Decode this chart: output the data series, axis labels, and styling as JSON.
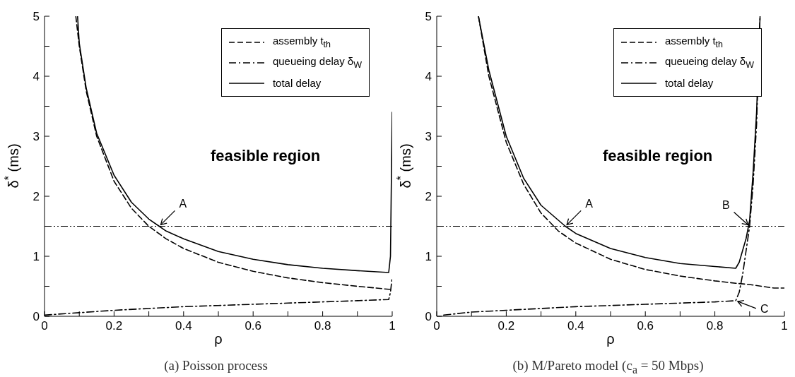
{
  "chart_data": [
    {
      "type": "line",
      "title": "(a) Poisson process",
      "xlabel": "ρ",
      "ylabel": "δ$^{*}$ (ms)",
      "xlim": [
        0,
        1
      ],
      "ylim": [
        0,
        5
      ],
      "xticks": [
        0,
        {
          "value": 0.1,
          "label": null
        },
        0.2,
        {
          "value": 0.3,
          "label": null
        },
        0.4,
        {
          "value": 0.5,
          "label": null
        },
        0.6,
        {
          "value": 0.7,
          "label": null
        },
        0.8,
        {
          "value": 0.9,
          "label": null
        },
        1
      ],
      "yticks": [
        0,
        {
          "value": 0.5,
          "label": null
        },
        1,
        {
          "value": 1.5,
          "label": null
        },
        2,
        {
          "value": 2.5,
          "label": null
        },
        3,
        {
          "value": 3.5,
          "label": null
        },
        4,
        {
          "value": 4.5,
          "label": null
        },
        5
      ],
      "legend": "top right",
      "marker": "none",
      "series": [
        {
          "name": "assembly t$_{th}$",
          "color": "#000000",
          "line_style": "dashed",
          "x": [
            0.09,
            0.1,
            0.12,
            0.15,
            0.2,
            0.25,
            0.3,
            0.35,
            0.4,
            0.5,
            0.6,
            0.7,
            0.8,
            0.9,
            0.99,
            1.0
          ],
          "values": [
            5.0,
            4.5,
            3.75,
            3.0,
            2.25,
            1.8,
            1.5,
            1.29,
            1.13,
            0.9,
            0.75,
            0.64,
            0.56,
            0.5,
            0.45,
            0.45
          ]
        },
        {
          "name": "queueing delay δ$_{W}$",
          "color": "#000000",
          "line_style": "dashdot",
          "x": [
            0.0,
            0.1,
            0.2,
            0.3,
            0.4,
            0.5,
            0.6,
            0.7,
            0.8,
            0.9,
            0.99,
            0.995,
            1.0
          ],
          "values": [
            0.02,
            0.06,
            0.1,
            0.13,
            0.16,
            0.18,
            0.2,
            0.22,
            0.24,
            0.26,
            0.28,
            0.4,
            0.65
          ]
        },
        {
          "name": "total delay",
          "color": "#000000",
          "line_style": "solid",
          "x": [
            0.095,
            0.1,
            0.12,
            0.15,
            0.2,
            0.25,
            0.3,
            0.33,
            0.35,
            0.4,
            0.5,
            0.6,
            0.7,
            0.8,
            0.9,
            0.99,
            0.995,
            1.0
          ],
          "values": [
            5.0,
            4.55,
            3.8,
            3.05,
            2.35,
            1.9,
            1.62,
            1.5,
            1.42,
            1.29,
            1.08,
            0.95,
            0.86,
            0.8,
            0.76,
            0.73,
            1.0,
            3.4
          ]
        }
      ],
      "ref_lines": [
        {
          "axis": "y",
          "value": 1.5,
          "color": "#000000",
          "line_style": "dashdotdot"
        }
      ],
      "annotations": [
        "feasible region",
        {
          "text": "A",
          "x": 0.33,
          "y": 1.5
        }
      ]
    },
    {
      "type": "line",
      "title": "(b) M/Pareto model (c$_{a}$ = 50 Mbps)",
      "xlabel": "ρ",
      "ylabel": "δ$^{*}$ (ms)",
      "xlim": [
        0,
        1
      ],
      "ylim": [
        0,
        5
      ],
      "xticks": [
        0,
        {
          "value": 0.1,
          "label": null
        },
        0.2,
        {
          "value": 0.3,
          "label": null
        },
        0.4,
        {
          "value": 0.5,
          "label": null
        },
        0.6,
        {
          "value": 0.7,
          "label": null
        },
        0.8,
        {
          "value": 0.9,
          "label": null
        },
        1
      ],
      "yticks": [
        0,
        {
          "value": 0.5,
          "label": null
        },
        1,
        {
          "value": 1.5,
          "label": null
        },
        2,
        {
          "value": 2.5,
          "label": null
        },
        3,
        {
          "value": 3.5,
          "label": null
        },
        4,
        {
          "value": 4.5,
          "label": null
        },
        5
      ],
      "legend": "top right",
      "marker": "none",
      "series": [
        {
          "name": "assembly t$_{th}$",
          "color": "#000000",
          "line_style": "dashed",
          "x": [
            0.12,
            0.15,
            0.2,
            0.25,
            0.3,
            0.35,
            0.4,
            0.5,
            0.6,
            0.7,
            0.8,
            0.86,
            0.9,
            0.97,
            1.0
          ],
          "values": [
            5.0,
            4.0,
            2.9,
            2.2,
            1.72,
            1.42,
            1.22,
            0.95,
            0.78,
            0.67,
            0.59,
            0.55,
            0.53,
            0.47,
            0.47
          ]
        },
        {
          "name": "queueing delay δ$_{W}$",
          "color": "#000000",
          "line_style": "dashdot",
          "x": [
            0.02,
            0.1,
            0.2,
            0.3,
            0.4,
            0.5,
            0.6,
            0.7,
            0.8,
            0.86,
            0.87,
            0.88,
            0.89,
            0.9,
            0.91,
            0.92,
            0.93
          ],
          "values": [
            0.02,
            0.07,
            0.1,
            0.13,
            0.16,
            0.18,
            0.2,
            0.22,
            0.24,
            0.26,
            0.4,
            0.7,
            1.1,
            1.5,
            2.2,
            3.2,
            5.0
          ]
        },
        {
          "name": "total delay",
          "color": "#000000",
          "line_style": "solid",
          "x": [
            0.12,
            0.15,
            0.2,
            0.25,
            0.3,
            0.37,
            0.4,
            0.5,
            0.6,
            0.7,
            0.8,
            0.86,
            0.87,
            0.88,
            0.89,
            0.9,
            0.91,
            0.92,
            0.93
          ],
          "values": [
            5.0,
            4.1,
            3.0,
            2.3,
            1.85,
            1.5,
            1.38,
            1.13,
            0.98,
            0.88,
            0.83,
            0.8,
            0.9,
            1.1,
            1.3,
            1.6,
            2.4,
            3.4,
            5.0
          ]
        }
      ],
      "ref_lines": [
        {
          "axis": "y",
          "value": 1.5,
          "color": "#000000",
          "line_style": "dashdotdot"
        }
      ],
      "annotations": [
        "feasible region",
        {
          "text": "A",
          "x": 0.37,
          "y": 1.5
        },
        {
          "text": "B",
          "x": 0.9,
          "y": 1.5
        },
        {
          "text": "C",
          "x": 0.86,
          "y": 0.26
        }
      ]
    }
  ]
}
